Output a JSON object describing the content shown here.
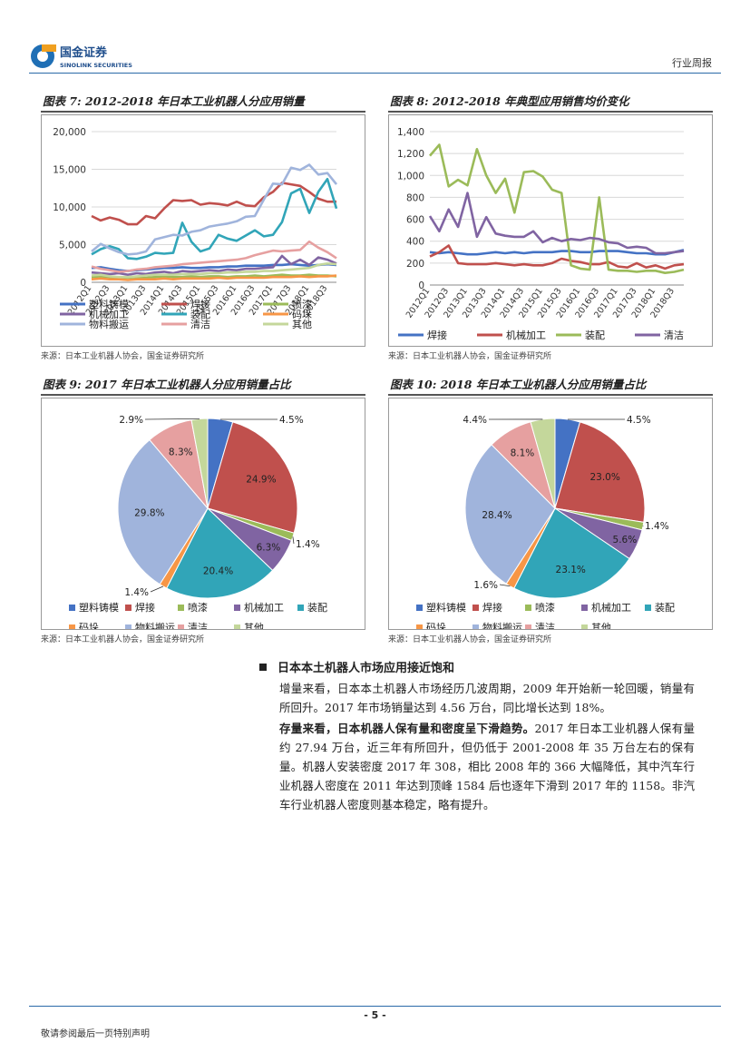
{
  "header": {
    "logo_cn": "国金证券",
    "logo_en": "SINOLINK SECURITIES",
    "report_type": "行业周报"
  },
  "figures": {
    "fig7": {
      "title": "图表 7:  2012-2018 年日本工业机器人分应用销量",
      "source": "来源：日本工业机器人协会，国金证券研究所"
    },
    "fig8": {
      "title": "图表 8:  2012-2018 年典型应用销售均价变化",
      "source": "来源：日本工业机器人协会，国金证券研究所"
    },
    "fig9": {
      "title": "图表 9:  2017 年日本工业机器人分应用销量占比",
      "source": "来源：日本工业机器人协会，国金证券研究所"
    },
    "fig10": {
      "title": "图表 10:  2018 年日本工业机器人分应用销量占比",
      "source": "来源：日本工业机器人协会，国金证券研究所"
    }
  },
  "chart_data": [
    {
      "type": "line",
      "y_ticks": [
        "0",
        "5,000",
        "10,000",
        "15,000",
        "20,000"
      ],
      "ylim": [
        0,
        20000
      ],
      "x_tick_labels": [
        "2012Q1",
        "2012Q3",
        "2013Q1",
        "2013Q3",
        "2014Q1",
        "2014Q3",
        "2015Q1",
        "2015Q3",
        "2016Q1",
        "2016Q3",
        "2017Q1",
        "2017Q3",
        "2018Q1",
        "2018Q3"
      ],
      "x": [
        "2012Q1",
        "2012Q2",
        "2012Q3",
        "2012Q4",
        "2013Q1",
        "2013Q2",
        "2013Q3",
        "2013Q4",
        "2014Q1",
        "2014Q2",
        "2014Q3",
        "2014Q4",
        "2015Q1",
        "2015Q2",
        "2015Q3",
        "2015Q4",
        "2016Q1",
        "2016Q2",
        "2016Q3",
        "2016Q4",
        "2017Q1",
        "2017Q2",
        "2017Q3",
        "2017Q4",
        "2018Q1",
        "2018Q2",
        "2018Q3",
        "2018Q4"
      ],
      "series": [
        {
          "name": "塑料铸模",
          "color": "#4472C4",
          "values": [
            1900,
            2000,
            1800,
            1600,
            1500,
            1600,
            1700,
            1800,
            1900,
            1900,
            2000,
            1900,
            1900,
            2000,
            2000,
            2100,
            2100,
            2200,
            2200,
            2200,
            2300,
            2300,
            2400,
            2300,
            2200,
            2300,
            2400,
            2300
          ]
        },
        {
          "name": "焊接",
          "color": "#C0504D",
          "values": [
            8800,
            8200,
            8600,
            8300,
            7700,
            7700,
            8800,
            8500,
            9800,
            10900,
            10800,
            10900,
            10300,
            10500,
            10400,
            10200,
            10700,
            10200,
            10100,
            11300,
            12000,
            13200,
            13000,
            12800,
            12000,
            11100,
            10700,
            10700
          ]
        },
        {
          "name": "喷漆",
          "color": "#9BBB59",
          "values": [
            700,
            800,
            700,
            600,
            600,
            700,
            600,
            700,
            800,
            700,
            700,
            800,
            700,
            800,
            800,
            700,
            800,
            800,
            900,
            800,
            900,
            1000,
            900,
            900,
            1000,
            900,
            900,
            800
          ]
        },
        {
          "name": "机械加工",
          "color": "#8064A2",
          "values": [
            1300,
            1200,
            1100,
            1200,
            1000,
            1200,
            1100,
            1300,
            1400,
            1200,
            1500,
            1400,
            1500,
            1600,
            1500,
            1700,
            1600,
            1800,
            1800,
            1900,
            2000,
            3500,
            2400,
            3000,
            2300,
            3300,
            3000,
            2500
          ]
        },
        {
          "name": "装配",
          "color": "#31A5B8",
          "values": [
            3700,
            4400,
            4800,
            4400,
            3200,
            3100,
            3400,
            3900,
            3800,
            3900,
            7900,
            5400,
            4100,
            4500,
            6300,
            5800,
            5500,
            6200,
            6900,
            6100,
            6300,
            8000,
            11800,
            12400,
            9200,
            12000,
            13700,
            9800
          ]
        },
        {
          "name": "码垛",
          "color": "#F79646",
          "values": [
            400,
            500,
            400,
            400,
            300,
            400,
            400,
            400,
            500,
            400,
            500,
            500,
            500,
            500,
            600,
            500,
            600,
            600,
            600,
            600,
            700,
            700,
            700,
            800,
            700,
            800,
            800,
            900
          ]
        },
        {
          "name": "物料搬运",
          "color": "#A0B4DC",
          "values": [
            4100,
            5100,
            4500,
            4000,
            3700,
            3800,
            4100,
            5700,
            6000,
            6300,
            6200,
            6700,
            6900,
            7400,
            7600,
            7800,
            8100,
            8700,
            8800,
            11000,
            13100,
            13000,
            15200,
            14900,
            15600,
            14300,
            14500,
            13000
          ]
        },
        {
          "name": "清洁",
          "color": "#E6A0A0",
          "values": [
            2100,
            1800,
            1600,
            1400,
            1500,
            1700,
            1800,
            2000,
            2100,
            2200,
            2400,
            2500,
            2600,
            2700,
            2800,
            2900,
            3000,
            3200,
            3600,
            3900,
            4200,
            4100,
            4200,
            4300,
            5400,
            4600,
            4000,
            3200
          ]
        },
        {
          "name": "其他",
          "color": "#C4D79B",
          "values": [
            900,
            1000,
            800,
            700,
            700,
            800,
            900,
            1000,
            1000,
            1000,
            1100,
            1100,
            1100,
            1200,
            1200,
            1300,
            1300,
            1400,
            1400,
            1500,
            1500,
            1600,
            1700,
            1800,
            1900,
            2300,
            2500,
            2400
          ]
        }
      ]
    },
    {
      "type": "line",
      "y_ticks": [
        "0",
        "200",
        "400",
        "600",
        "800",
        "1,000",
        "1,200",
        "1,400"
      ],
      "ylim": [
        0,
        1400
      ],
      "x_tick_labels": [
        "2012Q1",
        "2012Q3",
        "2013Q1",
        "2013Q3",
        "2014Q1",
        "2014Q3",
        "2015Q1",
        "2015Q3",
        "2016Q1",
        "2016Q3",
        "2017Q1",
        "2017Q3",
        "2018Q1",
        "2018Q3"
      ],
      "x": [
        "2012Q1",
        "2012Q2",
        "2012Q3",
        "2012Q4",
        "2013Q1",
        "2013Q2",
        "2013Q3",
        "2013Q4",
        "2014Q1",
        "2014Q2",
        "2014Q3",
        "2014Q4",
        "2015Q1",
        "2015Q2",
        "2015Q3",
        "2015Q4",
        "2016Q1",
        "2016Q2",
        "2016Q3",
        "2016Q4",
        "2017Q1",
        "2017Q2",
        "2017Q3",
        "2017Q4",
        "2018Q1",
        "2018Q2",
        "2018Q3",
        "2018Q4"
      ],
      "series": [
        {
          "name": "焊接",
          "color": "#4472C4",
          "values": [
            300,
            290,
            300,
            290,
            280,
            280,
            290,
            300,
            290,
            300,
            290,
            300,
            300,
            300,
            310,
            310,
            300,
            300,
            310,
            310,
            310,
            300,
            290,
            290,
            280,
            280,
            300,
            320
          ]
        },
        {
          "name": "机械加工",
          "color": "#C0504D",
          "values": [
            260,
            300,
            360,
            200,
            190,
            190,
            190,
            200,
            190,
            180,
            190,
            180,
            180,
            200,
            240,
            220,
            210,
            190,
            190,
            210,
            170,
            160,
            200,
            160,
            180,
            150,
            180,
            190
          ]
        },
        {
          "name": "装配",
          "color": "#9BBB59",
          "values": [
            1180,
            1280,
            900,
            960,
            910,
            1240,
            1000,
            840,
            970,
            660,
            1030,
            1040,
            990,
            870,
            840,
            180,
            150,
            140,
            800,
            140,
            130,
            130,
            120,
            130,
            130,
            110,
            120,
            140
          ]
        },
        {
          "name": "清洁",
          "color": "#8064A2",
          "values": [
            630,
            490,
            690,
            530,
            840,
            440,
            620,
            470,
            450,
            440,
            440,
            490,
            390,
            430,
            400,
            420,
            410,
            430,
            420,
            390,
            380,
            340,
            350,
            340,
            290,
            290,
            300,
            310
          ]
        }
      ]
    },
    {
      "type": "pie",
      "slices": [
        {
          "name": "塑料铸模",
          "value": 4.5,
          "label": "4.5%",
          "color": "#4472C4"
        },
        {
          "name": "焊接",
          "value": 24.9,
          "label": "24.9%",
          "color": "#C0504D"
        },
        {
          "name": "喷漆",
          "value": 1.4,
          "label": "1.4%",
          "color": "#9BBB59"
        },
        {
          "name": "机械加工",
          "value": 6.3,
          "label": "6.3%",
          "color": "#8064A2"
        },
        {
          "name": "装配",
          "value": 20.4,
          "label": "20.4%",
          "color": "#31A5B8"
        },
        {
          "name": "码垛",
          "value": 1.4,
          "label": "1.4%",
          "color": "#F79646"
        },
        {
          "name": "物料搬运",
          "value": 29.8,
          "label": "29.8%",
          "color": "#A0B4DC"
        },
        {
          "name": "清洁",
          "value": 8.3,
          "label": "8.3%",
          "color": "#E6A0A0"
        },
        {
          "name": "其他",
          "value": 2.9,
          "label": "2.9%",
          "color": "#C4D79B"
        }
      ]
    },
    {
      "type": "pie",
      "slices": [
        {
          "name": "塑料铸模",
          "value": 4.5,
          "label": "4.5%",
          "color": "#4472C4"
        },
        {
          "name": "焊接",
          "value": 23.0,
          "label": "23.0%",
          "color": "#C0504D"
        },
        {
          "name": "喷漆",
          "value": 1.4,
          "label": "1.4%",
          "color": "#9BBB59"
        },
        {
          "name": "机械加工",
          "value": 5.6,
          "label": "5.6%",
          "color": "#8064A2"
        },
        {
          "name": "装配",
          "value": 23.1,
          "label": "23.1%",
          "color": "#31A5B8"
        },
        {
          "name": "码垛",
          "value": 1.6,
          "label": "1.6%",
          "color": "#F79646"
        },
        {
          "name": "物料搬运",
          "value": 28.4,
          "label": "28.4%",
          "color": "#A0B4DC"
        },
        {
          "name": "清洁",
          "value": 8.1,
          "label": "8.1%",
          "color": "#E6A0A0"
        },
        {
          "name": "其他",
          "value": 4.4,
          "label": "4.4%",
          "color": "#C4D79B"
        }
      ]
    }
  ],
  "body": {
    "heading": "日本本土机器人市场应用接近饱和",
    "para1": "增量来看，日本本土机器人市场经历几波周期，2009 年开始新一轮回暖，销量有所回升。2017 年市场销量达到 4.56 万台，同比增长达到 18%。",
    "para2_lead": "存量来看，日本机器人保有量和密度呈下滑趋势。",
    "para2_rest": "2017 年日本工业机器人保有量约 27.94 万台，近三年有所回升，但仍低于 2001-2008 年 35 万台左右的保有量。机器人安装密度 2017 年 308，相比 2008 年的 366 大幅降低，其中汽车行业机器人密度在 2011 年达到顶峰 1584 后也逐年下滑到 2017 年的 1158。非汽车行业机器人密度则基本稳定，略有提升。"
  },
  "footer": {
    "page_number": "- 5 -",
    "disclaimer": "敬请参阅最后一页特别声明"
  }
}
